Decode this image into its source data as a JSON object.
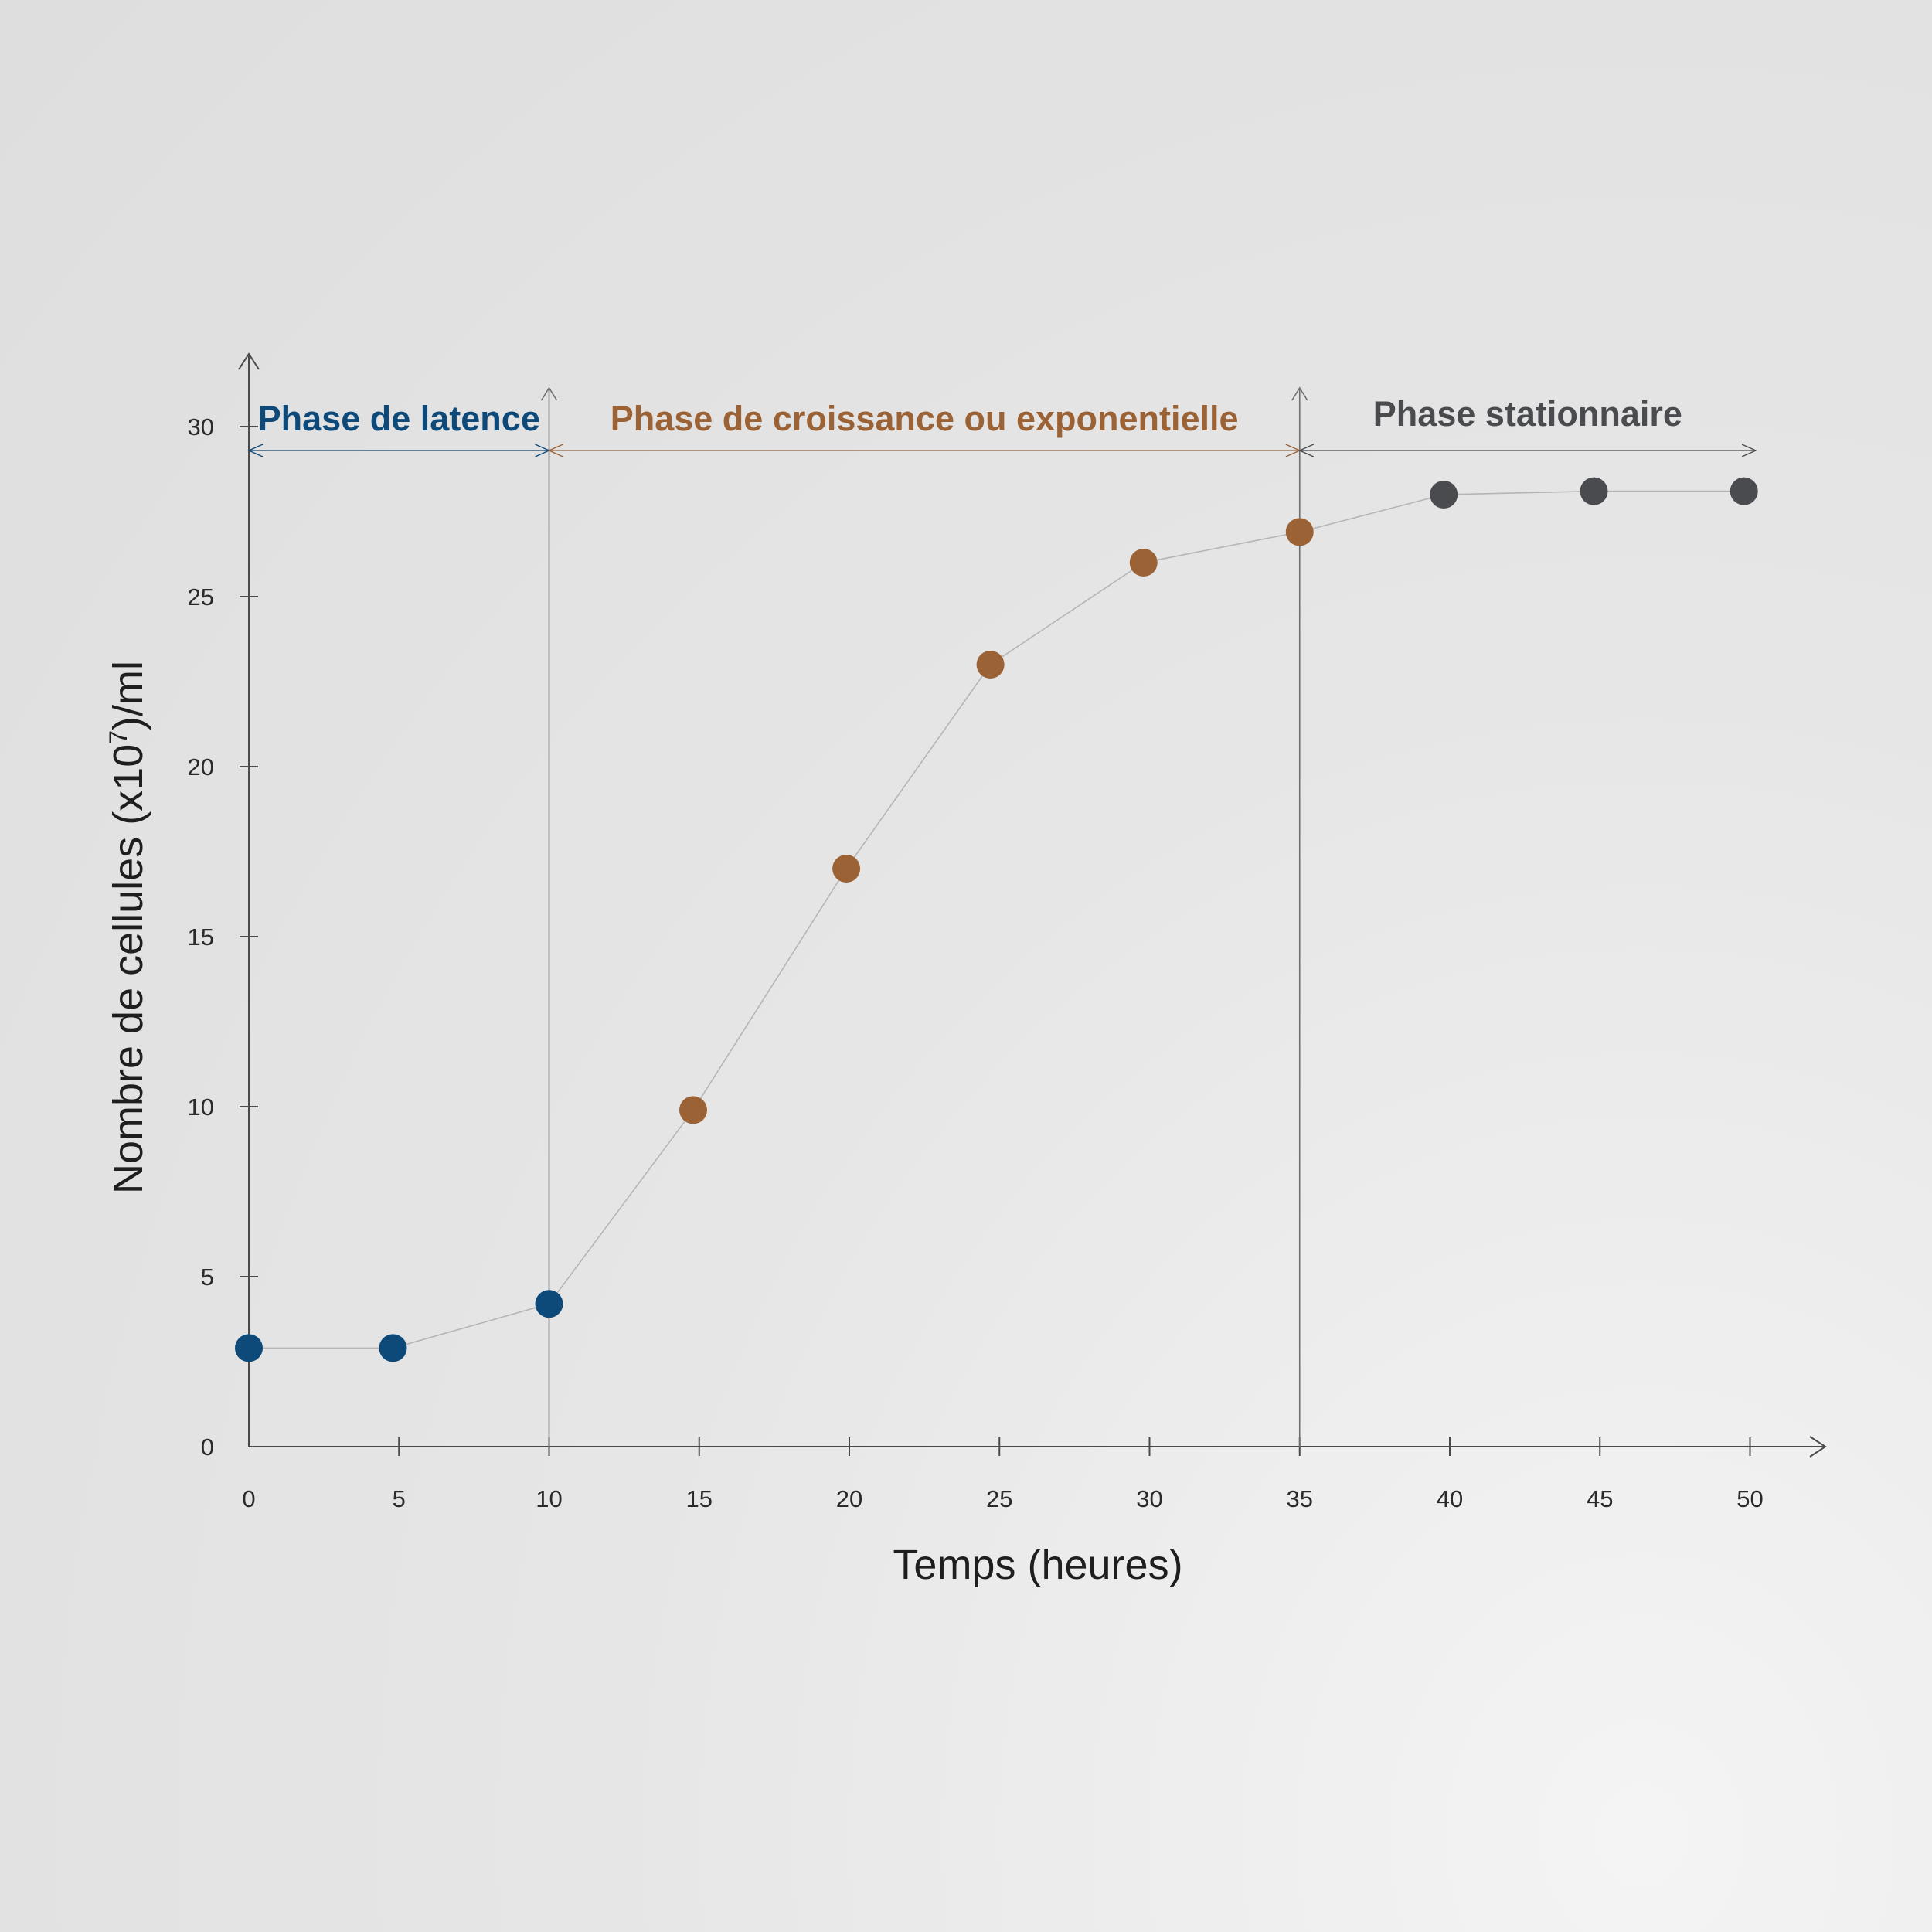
{
  "chart_data": {
    "type": "scatter",
    "title": "",
    "xlabel": "Temps (heures)",
    "ylabel_main": "Nombre de cellules (x10",
    "ylabel_sup": "7",
    "ylabel_end": ")/ml",
    "xlim": [
      0,
      52
    ],
    "ylim": [
      0,
      32
    ],
    "x_ticks": [
      "0",
      "5",
      "10",
      "15",
      "20",
      "25",
      "30",
      "35",
      "40",
      "45",
      "50"
    ],
    "y_ticks": [
      "0",
      "5",
      "10",
      "15",
      "20",
      "25",
      "30"
    ],
    "x_tick_values": [
      0,
      5,
      10,
      15,
      20,
      25,
      30,
      35,
      40,
      45,
      50
    ],
    "y_tick_values": [
      0,
      5,
      10,
      15,
      20,
      25,
      30
    ],
    "grid": false,
    "phases": [
      {
        "label": "Phase de latence",
        "start": 0,
        "end": 10,
        "color": "#0d4a7a"
      },
      {
        "label": "Phase de croissance ou exponentielle",
        "start": 10,
        "end": 35,
        "color": "#9b6236"
      },
      {
        "label": "Phase stationnaire",
        "start": 35,
        "end": 50,
        "color": "#4a4b4e"
      }
    ],
    "points": [
      {
        "x": 0,
        "y": 2.9,
        "phase": 0
      },
      {
        "x": 4.8,
        "y": 2.9,
        "phase": 0
      },
      {
        "x": 10,
        "y": 4.2,
        "phase": 0
      },
      {
        "x": 14.8,
        "y": 9.9,
        "phase": 1
      },
      {
        "x": 19.9,
        "y": 17.0,
        "phase": 1
      },
      {
        "x": 24.7,
        "y": 23.0,
        "phase": 1
      },
      {
        "x": 29.8,
        "y": 26.0,
        "phase": 1
      },
      {
        "x": 35,
        "y": 26.9,
        "phase": 1
      },
      {
        "x": 39.8,
        "y": 28.0,
        "phase": 2
      },
      {
        "x": 44.8,
        "y": 28.1,
        "phase": 2
      },
      {
        "x": 49.8,
        "y": 28.1,
        "phase": 2
      }
    ]
  }
}
